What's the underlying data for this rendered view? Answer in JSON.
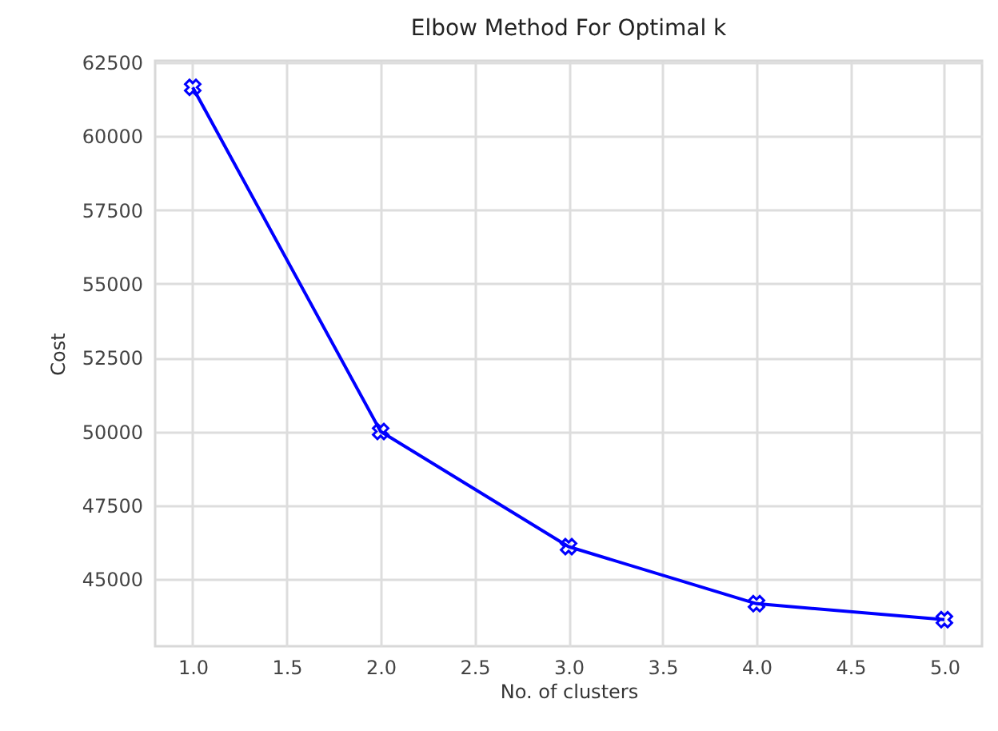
{
  "chart_data": {
    "type": "line",
    "title": "Elbow Method For Optimal k",
    "xlabel": "No. of clusters",
    "ylabel": "Cost",
    "x": [
      1,
      2,
      3,
      4,
      5
    ],
    "series": [
      {
        "color": "#0000ff",
        "values": [
          61650,
          50000,
          46100,
          44170,
          43630
        ]
      }
    ],
    "xlim": [
      0.8,
      5.2
    ],
    "xticks": [
      {
        "value": 1,
        "label": "1.0"
      },
      {
        "value": 1.5,
        "label": "1.5"
      },
      {
        "value": 2,
        "label": "2.0"
      },
      {
        "value": 2.5,
        "label": "2.5"
      },
      {
        "value": 3,
        "label": "3.0"
      },
      {
        "value": 3.5,
        "label": "3.5"
      },
      {
        "value": 4,
        "label": "4.0"
      },
      {
        "value": 4.5,
        "label": "4.5"
      },
      {
        "value": 5,
        "label": "5.0"
      }
    ],
    "ylim": [
      42730,
      62550
    ],
    "yticks": [
      45000,
      47500,
      50000,
      52500,
      55000,
      57500,
      60000,
      62500
    ],
    "grid": true,
    "marker": "cross",
    "line_style": "solid"
  }
}
